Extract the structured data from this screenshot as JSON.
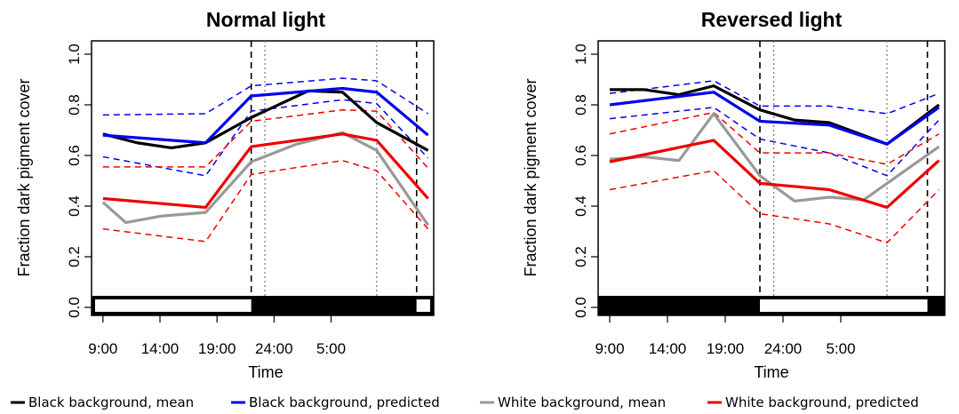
{
  "chart_data": [
    {
      "type": "line",
      "title": "Normal light",
      "xlabel": "Time",
      "ylabel": "Fraction dark pigment cover",
      "ylim": [
        0,
        1
      ],
      "yticks": [
        "0.0",
        "0.2",
        "0.4",
        "0.6",
        "0.8",
        "1.0"
      ],
      "xlim": [
        8,
        38
      ],
      "xticks": [
        {
          "v": 9,
          "label": "9:00"
        },
        {
          "v": 14,
          "label": "14:00"
        },
        {
          "v": 19,
          "label": "19:00"
        },
        {
          "v": 24,
          "label": "24:00"
        },
        {
          "v": 29,
          "label": "5:00"
        }
      ],
      "light_bar": [
        {
          "from": 8,
          "to": 22,
          "state": "light"
        },
        {
          "from": 22,
          "to": 36.5,
          "state": "dark"
        },
        {
          "from": 36.5,
          "to": 38,
          "state": "light"
        }
      ],
      "vlines_dashed": [
        22,
        36.5
      ],
      "vlines_dotted": [
        23.2,
        33
      ],
      "series": [
        {
          "name": "Black background, mean",
          "color": "#000000",
          "x": [
            9,
            12,
            15,
            18,
            22,
            27,
            30,
            33,
            37.5
          ],
          "y": [
            0.685,
            0.65,
            0.63,
            0.65,
            0.75,
            0.855,
            0.85,
            0.73,
            0.62
          ]
        },
        {
          "name": "Black background, predicted",
          "color": "#0000ee",
          "x": [
            9,
            18,
            22,
            30,
            33,
            37.5
          ],
          "y": [
            0.68,
            0.65,
            0.835,
            0.865,
            0.85,
            0.68
          ],
          "band": {
            "upper": [
              0.76,
              0.765,
              0.875,
              0.905,
              0.895,
              0.765
            ],
            "lower": [
              0.595,
              0.52,
              0.775,
              0.82,
              0.805,
              0.59
            ]
          }
        },
        {
          "name": "White background, mean",
          "color": "#999999",
          "x": [
            9,
            11,
            14,
            18,
            22,
            26,
            30,
            33,
            37.5
          ],
          "y": [
            0.415,
            0.335,
            0.36,
            0.375,
            0.575,
            0.645,
            0.69,
            0.62,
            0.325
          ]
        },
        {
          "name": "White background, predicted",
          "color": "#ee0000",
          "x": [
            9,
            18,
            22,
            30,
            33,
            37.5
          ],
          "y": [
            0.43,
            0.395,
            0.635,
            0.685,
            0.66,
            0.43
          ],
          "band": {
            "upper": [
              0.555,
              0.555,
              0.735,
              0.78,
              0.775,
              0.55
            ],
            "lower": [
              0.31,
              0.26,
              0.525,
              0.58,
              0.54,
              0.31
            ]
          }
        }
      ]
    },
    {
      "type": "line",
      "title": "Reversed light",
      "xlabel": "Time",
      "ylabel": "Fraction dark pigment cover",
      "ylim": [
        0,
        1
      ],
      "yticks": [
        "0.0",
        "0.2",
        "0.4",
        "0.6",
        "0.8",
        "1.0"
      ],
      "xlim": [
        8,
        38
      ],
      "xticks": [
        {
          "v": 9,
          "label": "9:00"
        },
        {
          "v": 14,
          "label": "14:00"
        },
        {
          "v": 19,
          "label": "19:00"
        },
        {
          "v": 24,
          "label": "24:00"
        },
        {
          "v": 29,
          "label": "5:00"
        }
      ],
      "light_bar": [
        {
          "from": 8,
          "to": 22,
          "state": "dark"
        },
        {
          "from": 22,
          "to": 36.5,
          "state": "light"
        },
        {
          "from": 36.5,
          "to": 38,
          "state": "dark"
        }
      ],
      "vlines_dashed": [
        22,
        36.5
      ],
      "vlines_dotted": [
        23.2,
        33
      ],
      "series": [
        {
          "name": "Black background, mean",
          "color": "#000000",
          "x": [
            9,
            12,
            15,
            18,
            22,
            25,
            28,
            33,
            37.5
          ],
          "y": [
            0.86,
            0.86,
            0.84,
            0.875,
            0.78,
            0.74,
            0.73,
            0.645,
            0.8
          ]
        },
        {
          "name": "Black background, predicted",
          "color": "#0000ee",
          "x": [
            9,
            18,
            22,
            28,
            33,
            37.5
          ],
          "y": [
            0.8,
            0.85,
            0.735,
            0.72,
            0.645,
            0.79
          ],
          "band": {
            "upper": [
              0.845,
              0.895,
              0.795,
              0.795,
              0.765,
              0.845
            ],
            "lower": [
              0.745,
              0.79,
              0.665,
              0.61,
              0.52,
              0.74
            ]
          }
        },
        {
          "name": "White background, mean",
          "color": "#999999",
          "x": [
            9,
            12,
            15,
            18,
            22,
            25,
            28,
            31,
            37.5
          ],
          "y": [
            0.585,
            0.595,
            0.58,
            0.765,
            0.52,
            0.42,
            0.435,
            0.425,
            0.635
          ]
        },
        {
          "name": "White background, predicted",
          "color": "#ee0000",
          "x": [
            9,
            18,
            22,
            28,
            33,
            37.5
          ],
          "y": [
            0.575,
            0.66,
            0.49,
            0.465,
            0.395,
            0.58
          ],
          "band": {
            "upper": [
              0.685,
              0.77,
              0.61,
              0.61,
              0.565,
              0.685
            ],
            "lower": [
              0.465,
              0.54,
              0.37,
              0.33,
              0.255,
              0.465
            ]
          }
        }
      ]
    }
  ],
  "legend": [
    {
      "label": "Black background, mean",
      "color": "#000000"
    },
    {
      "label": "Black background, predicted",
      "color": "#0000ee"
    },
    {
      "label": "White background, mean",
      "color": "#999999"
    },
    {
      "label": "White background, predicted",
      "color": "#ee0000"
    }
  ]
}
